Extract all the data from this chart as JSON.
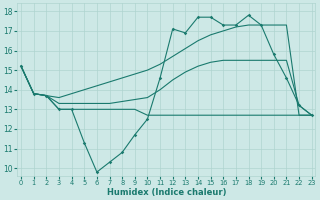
{
  "xlabel": "Humidex (Indice chaleur)",
  "xlim": [
    -0.3,
    23.3
  ],
  "ylim": [
    9.6,
    18.4
  ],
  "yticks": [
    10,
    11,
    12,
    13,
    14,
    15,
    16,
    17,
    18
  ],
  "xticks": [
    0,
    1,
    2,
    3,
    4,
    5,
    6,
    7,
    8,
    9,
    10,
    11,
    12,
    13,
    14,
    15,
    16,
    17,
    18,
    19,
    20,
    21,
    22,
    23
  ],
  "bg_color": "#cde8e6",
  "line_color": "#1a7a6e",
  "grid_color": "#afd4d0",
  "curve1_x": [
    0,
    1,
    2,
    3,
    4,
    5,
    6,
    7,
    8,
    9,
    10,
    11,
    12,
    13,
    14,
    15,
    16,
    17,
    18,
    19,
    20,
    21,
    22,
    23
  ],
  "curve1_y": [
    15.2,
    13.8,
    13.7,
    13.0,
    13.0,
    11.3,
    9.8,
    10.3,
    10.8,
    11.7,
    12.5,
    14.6,
    17.1,
    16.9,
    17.7,
    17.7,
    17.3,
    17.3,
    17.8,
    17.3,
    15.8,
    14.6,
    13.2,
    12.7
  ],
  "curve2_x": [
    0,
    1,
    2,
    3,
    4,
    5,
    6,
    7,
    8,
    9,
    10,
    11,
    12,
    13,
    14,
    15,
    16,
    17,
    18,
    19,
    20,
    21,
    22,
    23
  ],
  "curve2_y": [
    15.2,
    13.8,
    13.7,
    13.6,
    13.8,
    14.0,
    14.2,
    14.4,
    14.6,
    14.8,
    15.0,
    15.3,
    15.7,
    16.1,
    16.5,
    16.8,
    17.0,
    17.2,
    17.3,
    17.3,
    17.3,
    17.3,
    12.7,
    12.7
  ],
  "curve3_x": [
    0,
    1,
    2,
    3,
    4,
    5,
    6,
    7,
    8,
    9,
    10,
    11,
    12,
    13,
    14,
    15,
    16,
    17,
    18,
    19,
    20,
    21,
    22,
    23
  ],
  "curve3_y": [
    15.2,
    13.8,
    13.7,
    13.3,
    13.3,
    13.3,
    13.3,
    13.3,
    13.4,
    13.5,
    13.6,
    14.0,
    14.5,
    14.9,
    15.2,
    15.4,
    15.5,
    15.5,
    15.5,
    15.5,
    15.5,
    15.5,
    13.2,
    12.7
  ],
  "curve4_x": [
    0,
    1,
    2,
    3,
    4,
    5,
    6,
    7,
    8,
    9,
    10,
    11,
    12,
    13,
    14,
    15,
    16,
    17,
    18,
    19,
    20,
    21,
    22,
    23
  ],
  "curve4_y": [
    15.2,
    13.8,
    13.7,
    13.0,
    13.0,
    13.0,
    13.0,
    13.0,
    13.0,
    13.0,
    12.7,
    12.7,
    12.7,
    12.7,
    12.7,
    12.7,
    12.7,
    12.7,
    12.7,
    12.7,
    12.7,
    12.7,
    12.7,
    12.7
  ]
}
